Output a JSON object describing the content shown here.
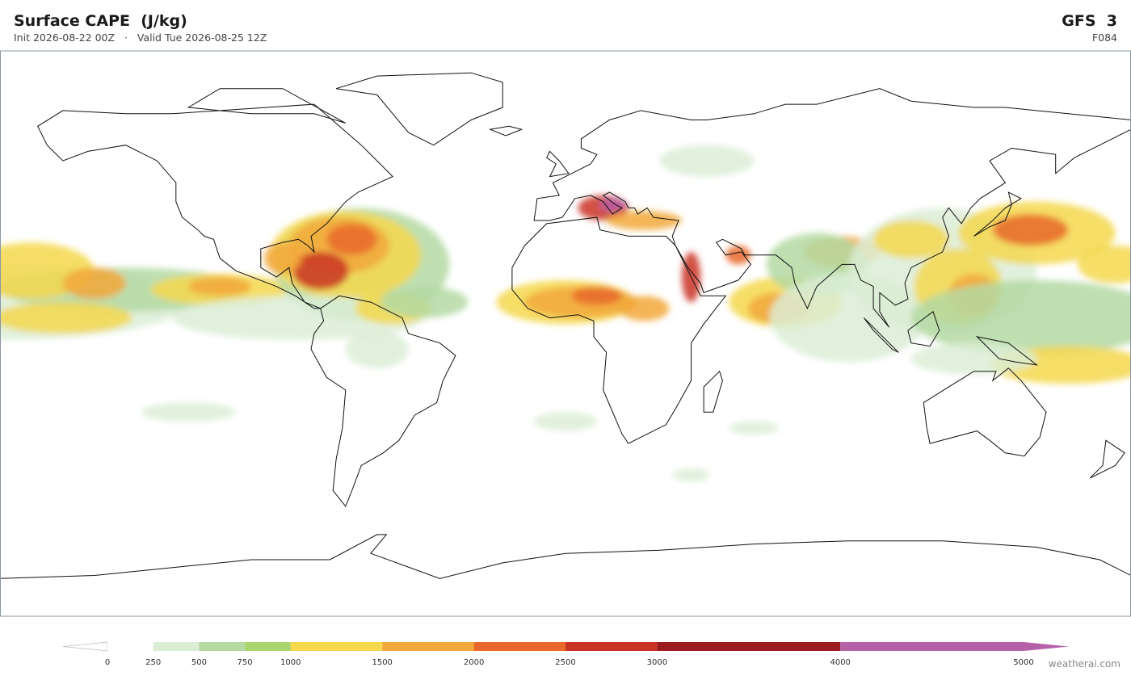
{
  "header": {
    "title": "Surface CAPE  (J/kg)",
    "subtitle": "Init 2026-08-22 00Z   ·   Valid Tue 2026-08-25 12Z",
    "model": "GFS  3",
    "forecast_hour": "F084"
  },
  "colorbar": {
    "xlim": [
      0,
      5000
    ],
    "ticks": [
      0,
      250,
      500,
      750,
      1000,
      1500,
      2000,
      2500,
      3000,
      4000,
      5000
    ],
    "colors": [
      "#ffffff",
      "#dcedd6",
      "#b4d9a3",
      "#a9d46e",
      "#f5d84e",
      "#f2a83b",
      "#e8692b",
      "#c93424",
      "#9b1c1e",
      "#b660a8"
    ],
    "under_color": "#ffffff",
    "over_color": "#b660a8"
  },
  "footer": {
    "credit": "weatherai.com"
  }
}
